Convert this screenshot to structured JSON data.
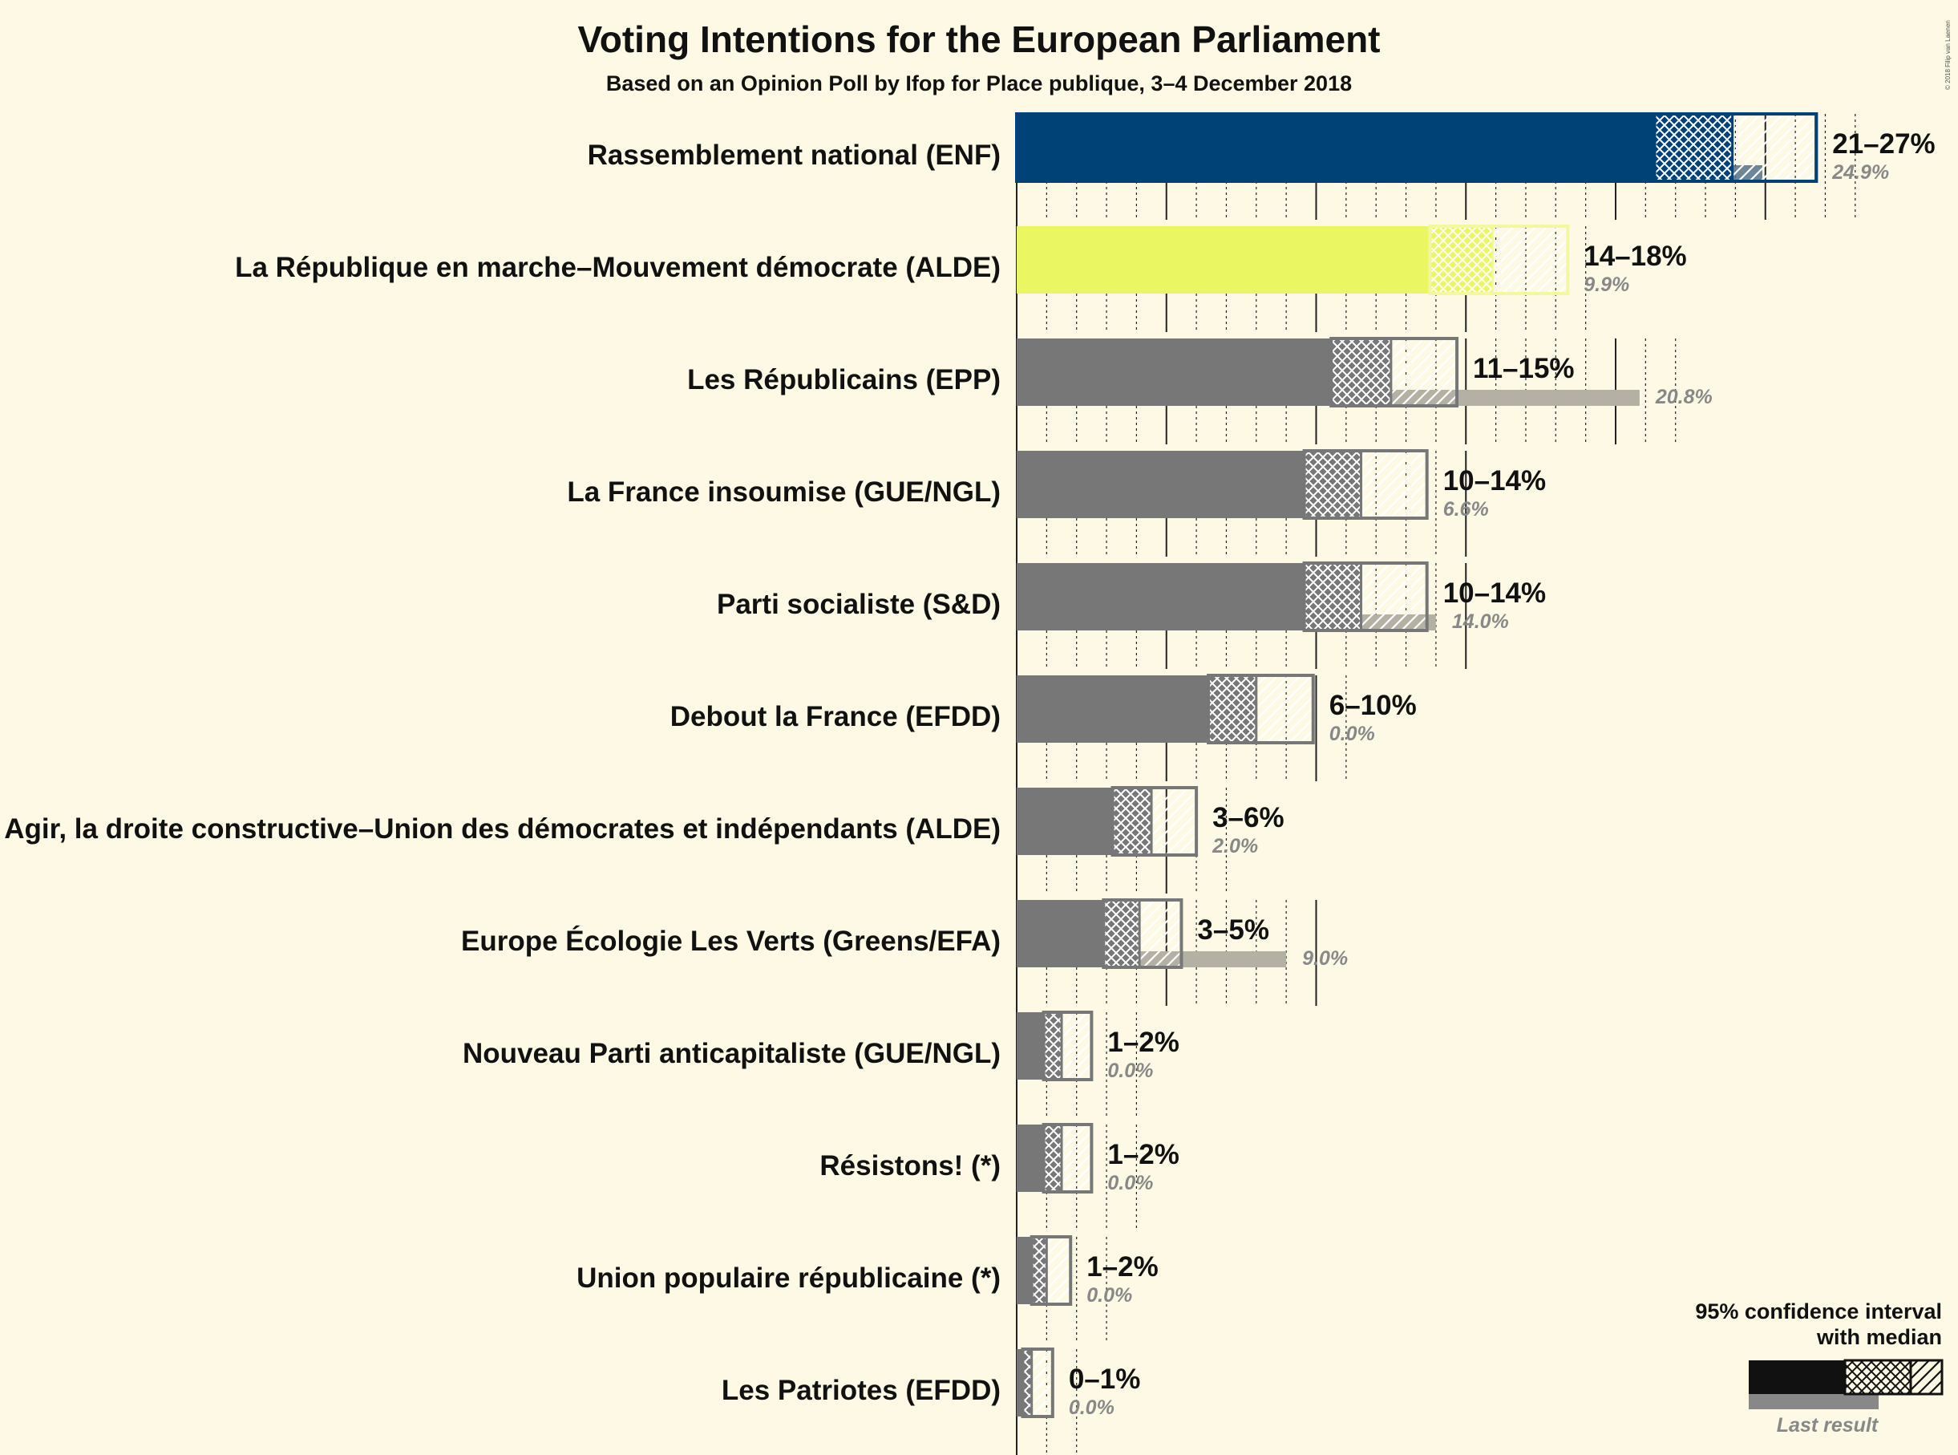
{
  "chart_data": {
    "type": "bar",
    "title": "Voting Intentions for the European Parliament",
    "subtitle": "Based on an Opinion Poll by Ifop for Place publique, 3–4 December 2018",
    "copyright": "© 2018 Filip van Laenen",
    "xlim": [
      0,
      27
    ],
    "xlabel": "",
    "ylabel": "",
    "series": [
      {
        "name": "Rassemblement national (ENF)",
        "low": 21,
        "ci_low": 21.3,
        "median": 23.9,
        "ci_high": 26.7,
        "label": "21–27%",
        "last": 24.9,
        "last_label": "24.9%",
        "color": "#004276"
      },
      {
        "name": "La République en marche–Mouvement démocrate (ALDE)",
        "low": 14,
        "ci_low": 13.8,
        "median": 15.9,
        "ci_high": 18.4,
        "label": "14–18%",
        "last": 9.9,
        "last_label": "9.9%",
        "color": "#ebf762"
      },
      {
        "name": "Les Républicains (EPP)",
        "low": 11,
        "ci_low": 10.5,
        "median": 12.5,
        "ci_high": 14.7,
        "label": "11–15%",
        "last": 20.8,
        "last_label": "20.8%",
        "color": "#777777"
      },
      {
        "name": "La France insoumise (GUE/NGL)",
        "low": 10,
        "ci_low": 9.6,
        "median": 11.5,
        "ci_high": 13.7,
        "label": "10–14%",
        "last": 6.6,
        "last_label": "6.6%",
        "color": "#777777"
      },
      {
        "name": "Parti socialiste (S&D)",
        "low": 10,
        "ci_low": 9.6,
        "median": 11.5,
        "ci_high": 13.7,
        "label": "10–14%",
        "last": 14.0,
        "last_label": "14.0%",
        "color": "#777777"
      },
      {
        "name": "Debout la France (EFDD)",
        "low": 6,
        "ci_low": 6.4,
        "median": 8.0,
        "ci_high": 9.9,
        "label": "6–10%",
        "last": 0.0,
        "last_label": "0.0%",
        "color": "#777777"
      },
      {
        "name": "Agir, la droite constructive–Union des démocrates et indépendants (ALDE)",
        "low": 3,
        "ci_low": 3.2,
        "median": 4.5,
        "ci_high": 6.0,
        "label": "3–6%",
        "last": 2.0,
        "last_label": "2.0%",
        "color": "#777777"
      },
      {
        "name": "Europe Écologie Les Verts (Greens/EFA)",
        "low": 3,
        "ci_low": 2.9,
        "median": 4.1,
        "ci_high": 5.5,
        "label": "3–5%",
        "last": 9.0,
        "last_label": "9.0%",
        "color": "#777777"
      },
      {
        "name": "Nouveau Parti anticapitaliste (GUE/NGL)",
        "low": 1,
        "ci_low": 0.9,
        "median": 1.5,
        "ci_high": 2.5,
        "label": "1–2%",
        "last": 0.0,
        "last_label": "0.0%",
        "color": "#777777"
      },
      {
        "name": "Résistons! (*)",
        "low": 1,
        "ci_low": 0.9,
        "median": 1.5,
        "ci_high": 2.5,
        "label": "1–2%",
        "last": 0.0,
        "last_label": "0.0%",
        "color": "#777777"
      },
      {
        "name": "Union populaire républicaine (*)",
        "low": 1,
        "ci_low": 0.5,
        "median": 1.0,
        "ci_high": 1.8,
        "label": "1–2%",
        "last": 0.0,
        "last_label": "0.0%",
        "color": "#777777"
      },
      {
        "name": "Les Patriotes (EFDD)",
        "low": 0,
        "ci_low": 0.2,
        "median": 0.5,
        "ci_high": 1.2,
        "label": "0–1%",
        "last": 0.0,
        "last_label": "0.0%",
        "color": "#777777"
      }
    ],
    "legend": {
      "line1": "95% confidence interval",
      "line2": "with median",
      "last_result": "Last result",
      "position": "bottom-right"
    }
  }
}
